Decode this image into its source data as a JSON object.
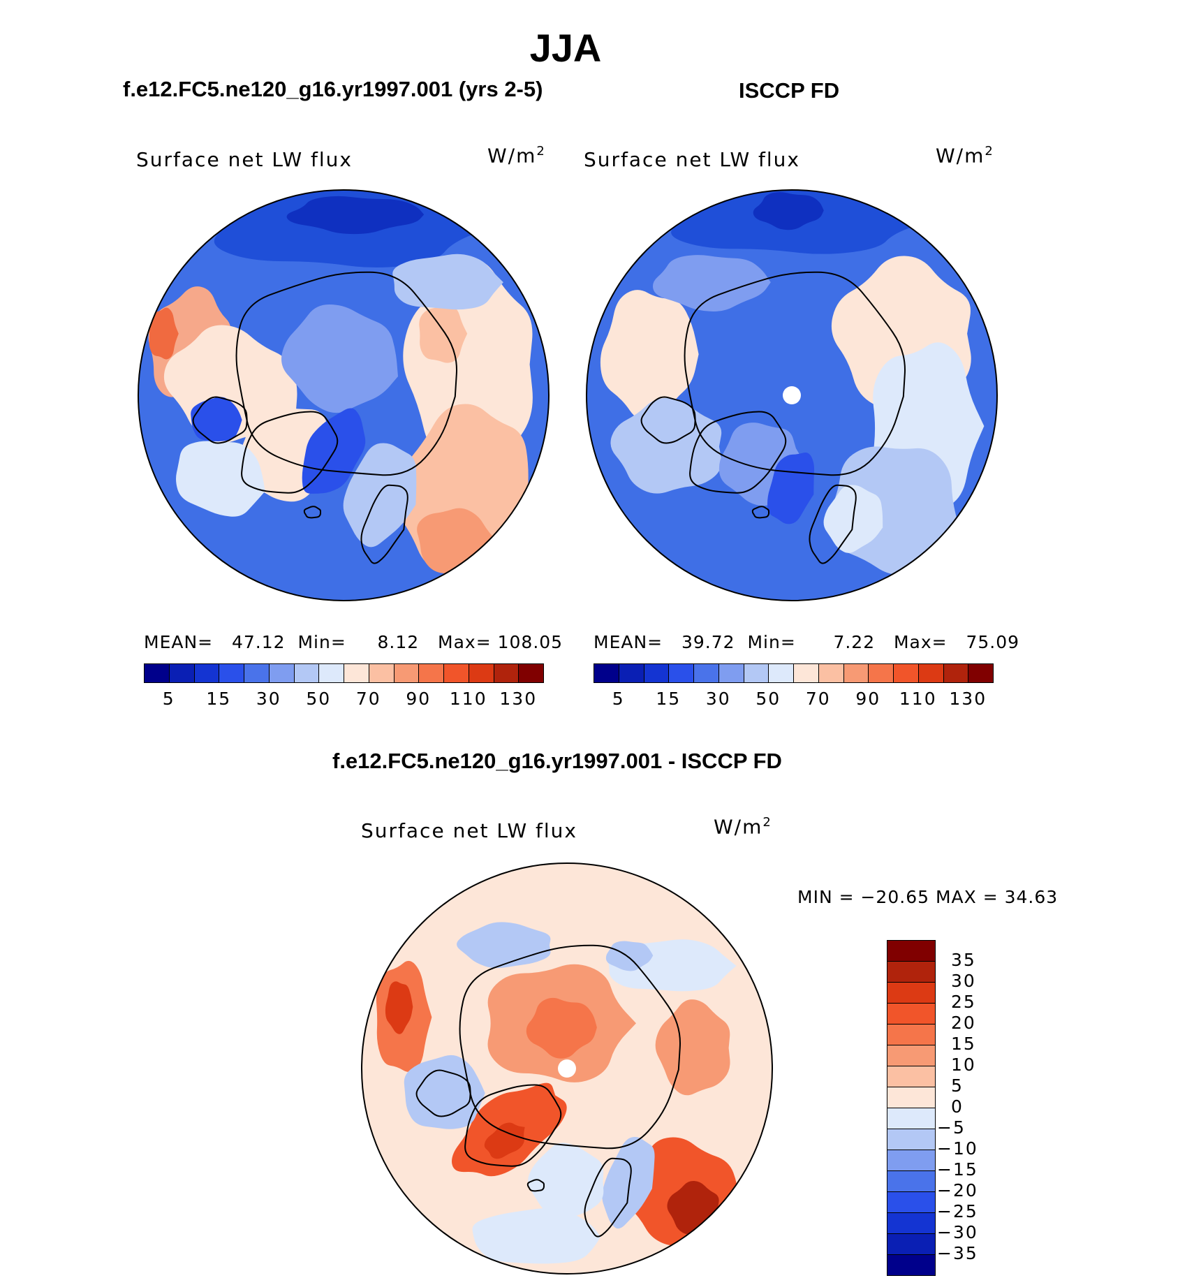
{
  "main_title": "JJA",
  "panels": [
    {
      "id": "model",
      "header": "f.e12.FC5.ne120_g16.yr1997.001 (yrs 2-5)",
      "variable": "Surface net LW flux",
      "units": "W/m",
      "units_sup": "2",
      "stats": {
        "mean_label": "MEAN=",
        "mean": "47.12",
        "min_label": "Min=",
        "min": "8.12",
        "max_label": "Max=",
        "max": "108.05"
      }
    },
    {
      "id": "obs",
      "header": "ISCCP FD",
      "variable": "Surface net LW flux",
      "units": "W/m",
      "units_sup": "2",
      "stats": {
        "mean_label": "MEAN=",
        "mean": "39.72",
        "min_label": "Min=",
        "min": "7.22",
        "max_label": "Max=",
        "max": "75.09"
      }
    }
  ],
  "diff_panel": {
    "header": "f.e12.FC5.ne120_g16.yr1997.001 - ISCCP FD",
    "variable": "Surface net LW flux",
    "units": "W/m",
    "units_sup": "2",
    "min_max": "MIN = −20.65 MAX =   34.63"
  },
  "chart_data": [
    {
      "type": "heatmap",
      "title": "f.e12.FC5.ne120_g16.yr1997.001 (yrs 2-5)",
      "projection": "polar stereographic (north pole)",
      "variable": "Surface net LW flux",
      "units": "W/m2",
      "mean": 47.12,
      "min": 8.12,
      "max": 108.05,
      "colorbar_ticks": [
        "5",
        "15",
        "30",
        "50",
        "70",
        "90",
        "110",
        "130"
      ],
      "colorbar_colors": [
        "#00008b",
        "#0a1fb4",
        "#1434d2",
        "#2a50ea",
        "#4a73ea",
        "#7f9df0",
        "#b3c8f5",
        "#dde9fb",
        "#fde6d8",
        "#fbc0a3",
        "#f79a74",
        "#f5754a",
        "#f1552a",
        "#dc3a14",
        "#b0230c",
        "#800000"
      ]
    },
    {
      "type": "heatmap",
      "title": "ISCCP FD",
      "projection": "polar stereographic (north pole)",
      "variable": "Surface net LW flux",
      "units": "W/m2",
      "mean": 39.72,
      "min": 7.22,
      "max": 75.09,
      "colorbar_ticks": [
        "5",
        "15",
        "30",
        "50",
        "70",
        "90",
        "110",
        "130"
      ],
      "colorbar_colors": [
        "#00008b",
        "#0a1fb4",
        "#1434d2",
        "#2a50ea",
        "#4a73ea",
        "#7f9df0",
        "#b3c8f5",
        "#dde9fb",
        "#fde6d8",
        "#fbc0a3",
        "#f79a74",
        "#f5754a",
        "#f1552a",
        "#dc3a14",
        "#b0230c",
        "#800000"
      ]
    },
    {
      "type": "heatmap",
      "title": "f.e12.FC5.ne120_g16.yr1997.001 - ISCCP FD",
      "projection": "polar stereographic (north pole)",
      "variable": "Surface net LW flux",
      "units": "W/m2",
      "min": -20.65,
      "max": 34.63,
      "colorbar_ticks": [
        "35",
        "30",
        "25",
        "20",
        "15",
        "10",
        "5",
        "0",
        "−5",
        "−10",
        "−15",
        "−20",
        "−25",
        "−30",
        "−35"
      ],
      "colorbar_colors": [
        "#800000",
        "#b0230c",
        "#dc3a14",
        "#f1552a",
        "#f5754a",
        "#f79a74",
        "#fbc0a3",
        "#fde6d8",
        "#dde9fb",
        "#b3c8f5",
        "#7f9df0",
        "#4a73ea",
        "#2a50ea",
        "#1434d2",
        "#0a1fb4",
        "#00008b"
      ]
    }
  ],
  "colors": {
    "coast": "#000000",
    "pole_mask": "#ffffff"
  }
}
